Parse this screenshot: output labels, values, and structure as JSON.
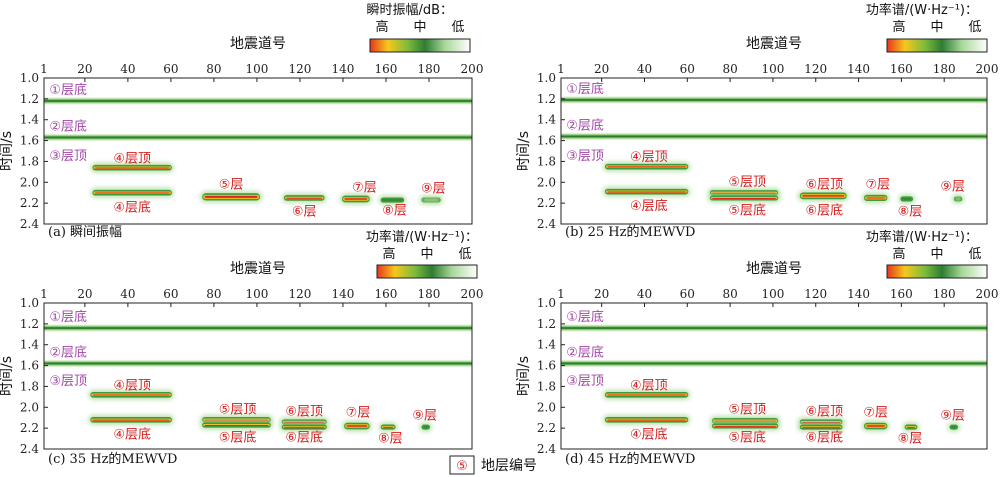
{
  "figure_legend": {
    "symbol": "⑤",
    "text": "地层编号"
  },
  "colors": {
    "horizon_green_dark": "#2f8f2f",
    "horizon_green_light": "#b8dfa0",
    "high": "#e02020",
    "mid": "#f0c020",
    "colorbar": [
      "#e8351c",
      "#f5c81c",
      "#7dbb3c",
      "#2e7d32",
      "#a8d89a",
      "#ffffff"
    ]
  },
  "chart_data": [
    {
      "type": "heatmap",
      "caption": "(a) 瞬间振幅",
      "xlabel": "地震道号",
      "ylabel": "时间/s",
      "xlim": [
        1,
        200
      ],
      "ylim": [
        1.0,
        2.4
      ],
      "xticks": [
        "1",
        "20",
        "40",
        "60",
        "80",
        "100",
        "120",
        "140",
        "160",
        "180",
        "200"
      ],
      "yticks": [
        "1.0",
        "1.2",
        "1.4",
        "1.6",
        "1.8",
        "2.0",
        "2.2",
        "2.4"
      ],
      "colorbar": {
        "title": "瞬时振幅/dB：",
        "labels": [
          "高",
          "中",
          "低"
        ]
      },
      "horizons": [
        {
          "label": "①层底",
          "t": 1.22,
          "x1": 1,
          "x2": 200,
          "label_x": 10,
          "label_pos": "above"
        },
        {
          "label": "②层底",
          "t": 1.57,
          "x1": 1,
          "x2": 200,
          "label_x": 10,
          "label_pos": "above"
        }
      ],
      "bodies": [
        {
          "x1": 24,
          "x2": 60,
          "t": 1.86,
          "h": 0.035,
          "strength": 0.75
        },
        {
          "x1": 24,
          "x2": 60,
          "t": 2.1,
          "h": 0.035,
          "strength": 0.8
        },
        {
          "x1": 75,
          "x2": 101,
          "t": 2.14,
          "h": 0.05,
          "strength": 0.95
        },
        {
          "x1": 113,
          "x2": 131,
          "t": 2.15,
          "h": 0.035,
          "strength": 0.8
        },
        {
          "x1": 140,
          "x2": 152,
          "t": 2.16,
          "h": 0.045,
          "strength": 0.95
        },
        {
          "x1": 158,
          "x2": 168,
          "t": 2.17,
          "h": 0.03,
          "strength": 0.3
        },
        {
          "x1": 177,
          "x2": 185,
          "t": 2.17,
          "h": 0.025,
          "strength": 0.15
        }
      ],
      "labels": [
        {
          "text": "③层顶",
          "x": 10,
          "t": 1.74,
          "color": "purple"
        },
        {
          "text": "④层顶",
          "x": 42,
          "t": 1.76,
          "color": "red"
        },
        {
          "text": "④层底",
          "x": 42,
          "t": 2.23,
          "color": "red"
        },
        {
          "text": "⑤层",
          "x": 88,
          "t": 2.01,
          "color": "red"
        },
        {
          "text": "⑥层",
          "x": 122,
          "t": 2.27,
          "color": "red"
        },
        {
          "text": "⑦层",
          "x": 150,
          "t": 2.04,
          "color": "red"
        },
        {
          "text": "⑧层",
          "x": 164,
          "t": 2.26,
          "color": "red"
        },
        {
          "text": "⑨层",
          "x": 182,
          "t": 2.05,
          "color": "red"
        }
      ]
    },
    {
      "type": "heatmap",
      "caption": "(b) 25 Hz的MEWVD",
      "xlabel": "地震道号",
      "ylabel": "时间/s",
      "xlim": [
        1,
        200
      ],
      "ylim": [
        1.0,
        2.4
      ],
      "xticks": [
        "1",
        "20",
        "40",
        "60",
        "80",
        "100",
        "120",
        "140",
        "160",
        "180",
        "200"
      ],
      "yticks": [
        "1.0",
        "1.2",
        "1.4",
        "1.6",
        "1.8",
        "2.0",
        "2.2",
        "2.4"
      ],
      "colorbar": {
        "title": "功率谱/(W·Hz⁻¹)：",
        "labels": [
          "高",
          "中",
          "低"
        ]
      },
      "horizons": [
        {
          "label": "①层底",
          "t": 1.21,
          "x1": 1,
          "x2": 200,
          "label_x": 10,
          "label_pos": "above"
        },
        {
          "label": "②层底",
          "t": 1.56,
          "x1": 1,
          "x2": 200,
          "label_x": 10,
          "label_pos": "above"
        }
      ],
      "bodies": [
        {
          "x1": 22,
          "x2": 60,
          "t": 1.85,
          "h": 0.035,
          "strength": 0.85
        },
        {
          "x1": 22,
          "x2": 60,
          "t": 2.09,
          "h": 0.035,
          "strength": 0.85
        },
        {
          "x1": 71,
          "x2": 102,
          "t": 2.1,
          "h": 0.03,
          "strength": 0.85
        },
        {
          "x1": 71,
          "x2": 102,
          "t": 2.15,
          "h": 0.03,
          "strength": 0.85
        },
        {
          "x1": 113,
          "x2": 134,
          "t": 2.13,
          "h": 0.045,
          "strength": 0.95
        },
        {
          "x1": 143,
          "x2": 153,
          "t": 2.15,
          "h": 0.04,
          "strength": 0.9
        },
        {
          "x1": 160,
          "x2": 165,
          "t": 2.16,
          "h": 0.03,
          "strength": 0.3
        },
        {
          "x1": 185,
          "x2": 188,
          "t": 2.16,
          "h": 0.025,
          "strength": 0.2
        }
      ],
      "labels": [
        {
          "text": "③层顶",
          "x": 10,
          "t": 1.74,
          "color": "purple"
        },
        {
          "text": "④层顶",
          "x": 42,
          "t": 1.75,
          "color": "red"
        },
        {
          "text": "④层底",
          "x": 42,
          "t": 2.22,
          "color": "red"
        },
        {
          "text": "⑤层顶",
          "x": 88,
          "t": 1.99,
          "color": "red"
        },
        {
          "text": "⑤层底",
          "x": 88,
          "t": 2.26,
          "color": "red"
        },
        {
          "text": "⑥层顶",
          "x": 124,
          "t": 2.01,
          "color": "red"
        },
        {
          "text": "⑥层底",
          "x": 124,
          "t": 2.26,
          "color": "red"
        },
        {
          "text": "⑦层",
          "x": 149,
          "t": 2.01,
          "color": "red"
        },
        {
          "text": "⑧层",
          "x": 164,
          "t": 2.27,
          "color": "red"
        },
        {
          "text": "⑨层",
          "x": 184,
          "t": 2.03,
          "color": "red"
        }
      ]
    },
    {
      "type": "heatmap",
      "caption": "(c) 35 Hz的MEWVD",
      "xlabel": "地震道号",
      "ylabel": "时间/s",
      "xlim": [
        1,
        200
      ],
      "ylim": [
        1.0,
        2.4
      ],
      "xticks": [
        "1",
        "20",
        "40",
        "60",
        "80",
        "100",
        "120",
        "140",
        "160",
        "180",
        "200"
      ],
      "yticks": [
        "1.0",
        "1.2",
        "1.4",
        "1.6",
        "1.8",
        "2.0",
        "2.2",
        "2.4"
      ],
      "colorbar": {
        "title": "功率谱/(W·Hz⁻¹)：",
        "labels": [
          "高",
          "中",
          "低"
        ]
      },
      "horizons": [
        {
          "label": "①层底",
          "t": 1.24,
          "x1": 1,
          "x2": 200,
          "label_x": 10,
          "label_pos": "above"
        },
        {
          "label": "②层底",
          "t": 1.58,
          "x1": 1,
          "x2": 200,
          "label_x": 10,
          "label_pos": "above"
        }
      ],
      "bodies": [
        {
          "x1": 23,
          "x2": 60,
          "t": 1.88,
          "h": 0.035,
          "strength": 0.85
        },
        {
          "x1": 23,
          "x2": 60,
          "t": 2.12,
          "h": 0.035,
          "strength": 0.85
        },
        {
          "x1": 75,
          "x2": 106,
          "t": 2.12,
          "h": 0.035,
          "strength": 0.95
        },
        {
          "x1": 75,
          "x2": 106,
          "t": 2.17,
          "h": 0.03,
          "strength": 0.9
        },
        {
          "x1": 112,
          "x2": 132,
          "t": 2.14,
          "h": 0.03,
          "strength": 0.85
        },
        {
          "x1": 112,
          "x2": 132,
          "t": 2.19,
          "h": 0.025,
          "strength": 0.85
        },
        {
          "x1": 141,
          "x2": 152,
          "t": 2.18,
          "h": 0.045,
          "strength": 0.9
        },
        {
          "x1": 158,
          "x2": 164,
          "t": 2.19,
          "h": 0.03,
          "strength": 0.8
        },
        {
          "x1": 177,
          "x2": 180,
          "t": 2.19,
          "h": 0.025,
          "strength": 0.4
        }
      ],
      "labels": [
        {
          "text": "③层顶",
          "x": 10,
          "t": 1.74,
          "color": "purple"
        },
        {
          "text": "④层顶",
          "x": 42,
          "t": 1.78,
          "color": "red"
        },
        {
          "text": "④层底",
          "x": 42,
          "t": 2.25,
          "color": "red"
        },
        {
          "text": "⑤层顶",
          "x": 91,
          "t": 2.01,
          "color": "red"
        },
        {
          "text": "⑤层底",
          "x": 91,
          "t": 2.28,
          "color": "red"
        },
        {
          "text": "⑥层顶",
          "x": 122,
          "t": 2.03,
          "color": "red"
        },
        {
          "text": "⑥层底",
          "x": 122,
          "t": 2.28,
          "color": "red"
        },
        {
          "text": "⑦层",
          "x": 147,
          "t": 2.04,
          "color": "red"
        },
        {
          "text": "⑧层",
          "x": 162,
          "t": 2.29,
          "color": "red"
        },
        {
          "text": "⑨层",
          "x": 178,
          "t": 2.07,
          "color": "red"
        }
      ]
    },
    {
      "type": "heatmap",
      "caption": "(d) 45 Hz的MEWVD",
      "xlabel": "地震道号",
      "ylabel": "时间/s",
      "xlim": [
        1,
        200
      ],
      "ylim": [
        1.0,
        2.4
      ],
      "xticks": [
        "1",
        "20",
        "40",
        "60",
        "80",
        "100",
        "120",
        "140",
        "160",
        "180",
        "200"
      ],
      "yticks": [
        "1.0",
        "1.2",
        "1.4",
        "1.6",
        "1.8",
        "2.0",
        "2.2",
        "2.4"
      ],
      "colorbar": {
        "title": "功率谱/(W·Hz⁻¹)：",
        "labels": [
          "高",
          "中",
          "低"
        ]
      },
      "horizons": [
        {
          "label": "①层底",
          "t": 1.24,
          "x1": 1,
          "x2": 200,
          "label_x": 10,
          "label_pos": "above"
        },
        {
          "label": "②层底",
          "t": 1.58,
          "x1": 1,
          "x2": 200,
          "label_x": 10,
          "label_pos": "above"
        }
      ],
      "bodies": [
        {
          "x1": 22,
          "x2": 60,
          "t": 1.88,
          "h": 0.035,
          "strength": 0.85
        },
        {
          "x1": 22,
          "x2": 60,
          "t": 2.12,
          "h": 0.035,
          "strength": 0.85
        },
        {
          "x1": 72,
          "x2": 102,
          "t": 2.13,
          "h": 0.035,
          "strength": 0.95
        },
        {
          "x1": 72,
          "x2": 102,
          "t": 2.18,
          "h": 0.025,
          "strength": 0.85
        },
        {
          "x1": 113,
          "x2": 132,
          "t": 2.14,
          "h": 0.025,
          "strength": 0.85
        },
        {
          "x1": 113,
          "x2": 132,
          "t": 2.19,
          "h": 0.025,
          "strength": 0.85
        },
        {
          "x1": 143,
          "x2": 153,
          "t": 2.18,
          "h": 0.045,
          "strength": 0.95
        },
        {
          "x1": 162,
          "x2": 167,
          "t": 2.19,
          "h": 0.03,
          "strength": 0.8
        },
        {
          "x1": 183,
          "x2": 186,
          "t": 2.19,
          "h": 0.025,
          "strength": 0.4
        }
      ],
      "labels": [
        {
          "text": "③层顶",
          "x": 10,
          "t": 1.74,
          "color": "purple"
        },
        {
          "text": "④层顶",
          "x": 42,
          "t": 1.78,
          "color": "red"
        },
        {
          "text": "④层底",
          "x": 42,
          "t": 2.25,
          "color": "red"
        },
        {
          "text": "⑤层顶",
          "x": 88,
          "t": 2.01,
          "color": "red"
        },
        {
          "text": "⑤层底",
          "x": 88,
          "t": 2.28,
          "color": "red"
        },
        {
          "text": "⑥层顶",
          "x": 124,
          "t": 2.03,
          "color": "red"
        },
        {
          "text": "⑥层底",
          "x": 124,
          "t": 2.28,
          "color": "red"
        },
        {
          "text": "⑦层",
          "x": 148,
          "t": 2.04,
          "color": "red"
        },
        {
          "text": "⑧层",
          "x": 164,
          "t": 2.29,
          "color": "red"
        },
        {
          "text": "⑨层",
          "x": 184,
          "t": 2.07,
          "color": "red"
        }
      ]
    }
  ]
}
